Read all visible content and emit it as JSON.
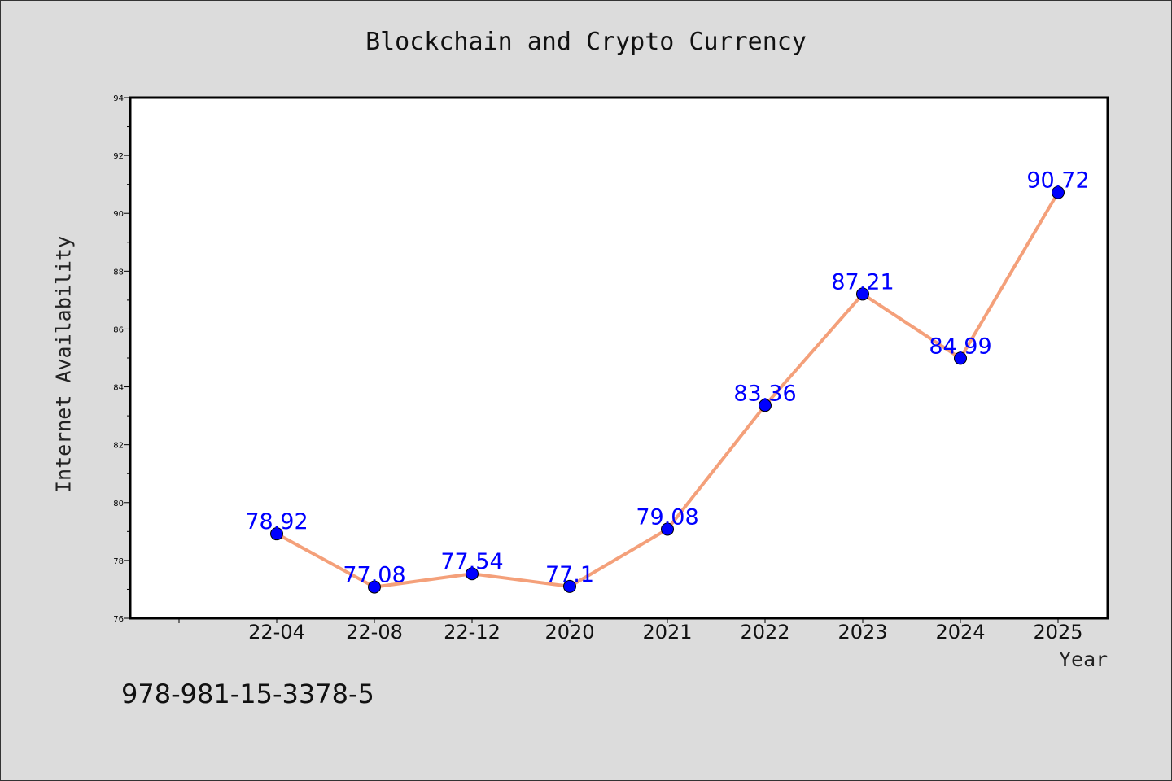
{
  "chart_data": {
    "type": "line",
    "title": "Blockchain and Crypto Currency",
    "xlabel": "Year",
    "ylabel": "Internet Availability",
    "categories": [
      "22-04",
      "22-08",
      "22-12",
      "2020",
      "2021",
      "2022",
      "2023",
      "2024",
      "2025"
    ],
    "series": [
      {
        "values": [
          78.92,
          77.08,
          77.54,
          77.1,
          79.08,
          83.36,
          87.21,
          84.99,
          90.72
        ],
        "data_labels": [
          "78.92",
          "77.08",
          "77.54",
          "77.1",
          "79.08",
          "83.36",
          "87.21",
          "84.99",
          "90.72"
        ],
        "line_color": "#f4a07a",
        "marker_color": "#0000ff",
        "label_color": "#0000ff"
      }
    ],
    "ylim": [
      76,
      94
    ],
    "yticks": [
      "76",
      "78",
      "80",
      "82",
      "84",
      "86",
      "88",
      "90",
      "92",
      "94"
    ],
    "grid": false,
    "legend": "none"
  },
  "footer_text": "978-981-15-3378-5",
  "colors": {
    "background": "#dcdcdc",
    "plot_background": "#ffffff",
    "axis": "#000000"
  }
}
